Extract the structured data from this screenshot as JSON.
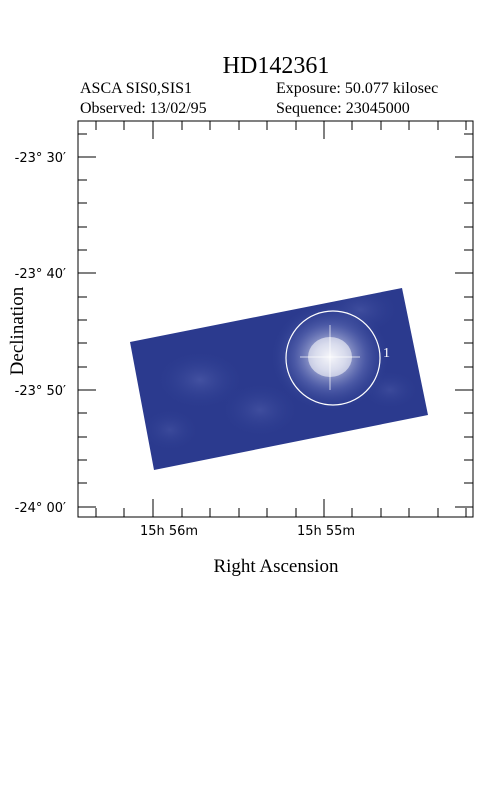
{
  "header": {
    "title": "HD142361",
    "instrument": "ASCA SIS0,SIS1",
    "exposure": "Exposure: 50.077 kilosec",
    "observed": "Observed: 13/02/95",
    "sequence": "Sequence: 23045000"
  },
  "axes": {
    "xlabel": "Right Ascension",
    "ylabel": "Declination",
    "y_ticks": [
      "-23° 30′",
      "-23° 40′",
      "-23° 50′",
      "-24° 00′"
    ],
    "x_ticks": [
      "15h 56m",
      "15h 55m"
    ]
  },
  "source": {
    "label": "1"
  },
  "colors": {
    "image_blue": "#2a3d91",
    "image_light": "#8a96c8"
  }
}
